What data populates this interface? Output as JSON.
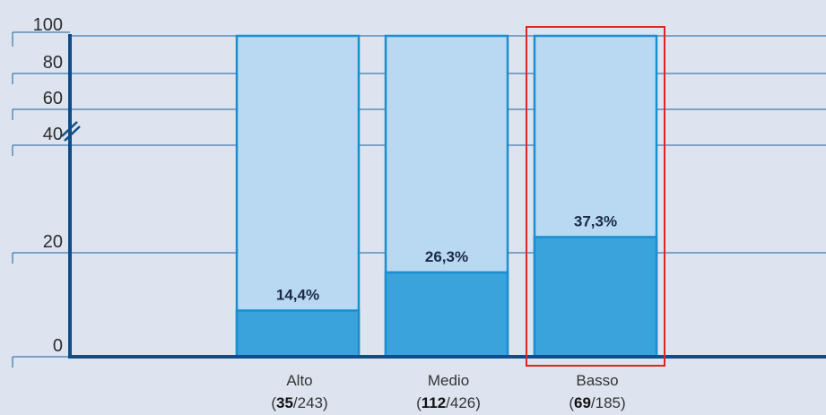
{
  "chart_data": {
    "type": "bar",
    "stacked": true,
    "categories": [
      "Alto",
      "Medio",
      "Basso"
    ],
    "counts": [
      {
        "num": "35",
        "den": "243"
      },
      {
        "num": "112",
        "den": "426"
      },
      {
        "num": "69",
        "den": "185"
      }
    ],
    "values": [
      14.4,
      26.3,
      37.3
    ],
    "value_labels": [
      "14,4%",
      "26,3%",
      "37,3%"
    ],
    "total": 100,
    "y_ticks": [
      "0",
      "20",
      "40",
      "60",
      "80",
      "100"
    ],
    "y_tick_values": [
      0,
      20,
      40,
      60,
      80,
      100
    ],
    "ylim": [
      0,
      100
    ],
    "axis_break": "between 40 and 100",
    "grid": true,
    "highlighted_category": "Basso",
    "title": "",
    "xlabel": "",
    "ylabel": ""
  },
  "colors": {
    "background": "#dde4ef",
    "bar_fill_dark": "#3aa3dc",
    "bar_fill_light": "#b9d8f1",
    "bar_stroke": "#1a8fd0",
    "axis": "#0d4d8c",
    "grid": "#1f5f99",
    "highlight_box": "#e02424"
  }
}
